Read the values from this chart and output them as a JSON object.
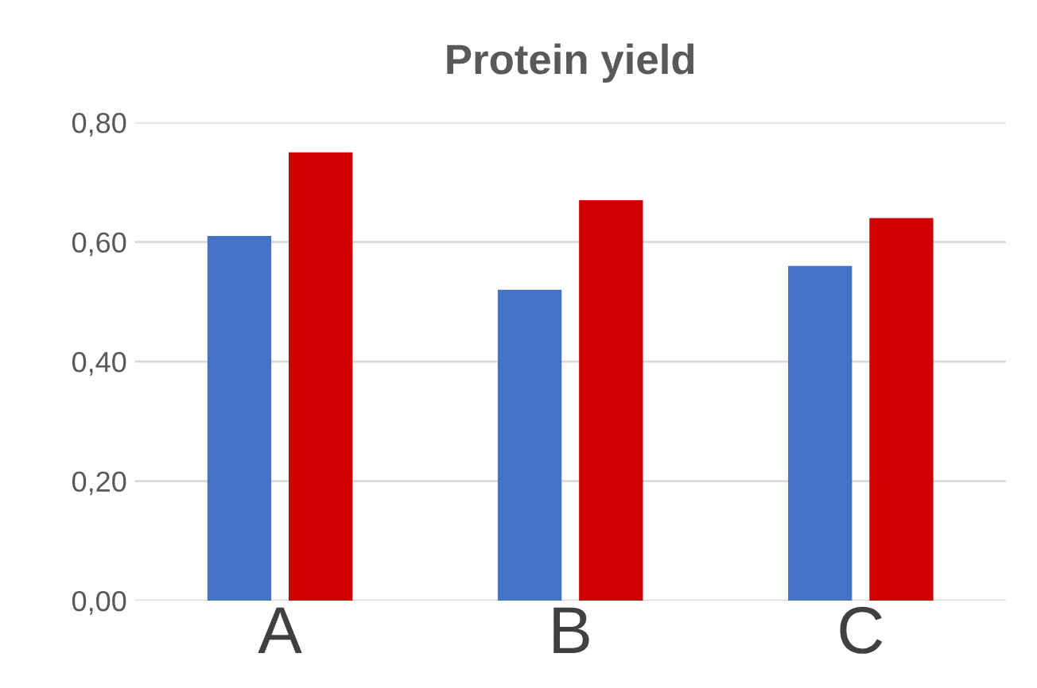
{
  "chart_data": {
    "type": "bar",
    "title": "Protein yield",
    "categories": [
      "A",
      "B",
      "C"
    ],
    "series": [
      {
        "color": "#4472c4",
        "values": [
          0.61,
          0.52,
          0.56
        ]
      },
      {
        "color": "#d00000",
        "values": [
          0.75,
          0.67,
          0.64
        ]
      }
    ],
    "ylim": [
      0,
      0.8
    ],
    "yticks": [
      {
        "value": 0,
        "label": "0,00"
      },
      {
        "value": 0.2,
        "label": "0,20"
      },
      {
        "value": 0.4,
        "label": "0,40"
      },
      {
        "value": 0.6,
        "label": "0,60"
      },
      {
        "value": 0.8,
        "label": "0,80"
      }
    ],
    "grid": "y",
    "legend": false
  }
}
